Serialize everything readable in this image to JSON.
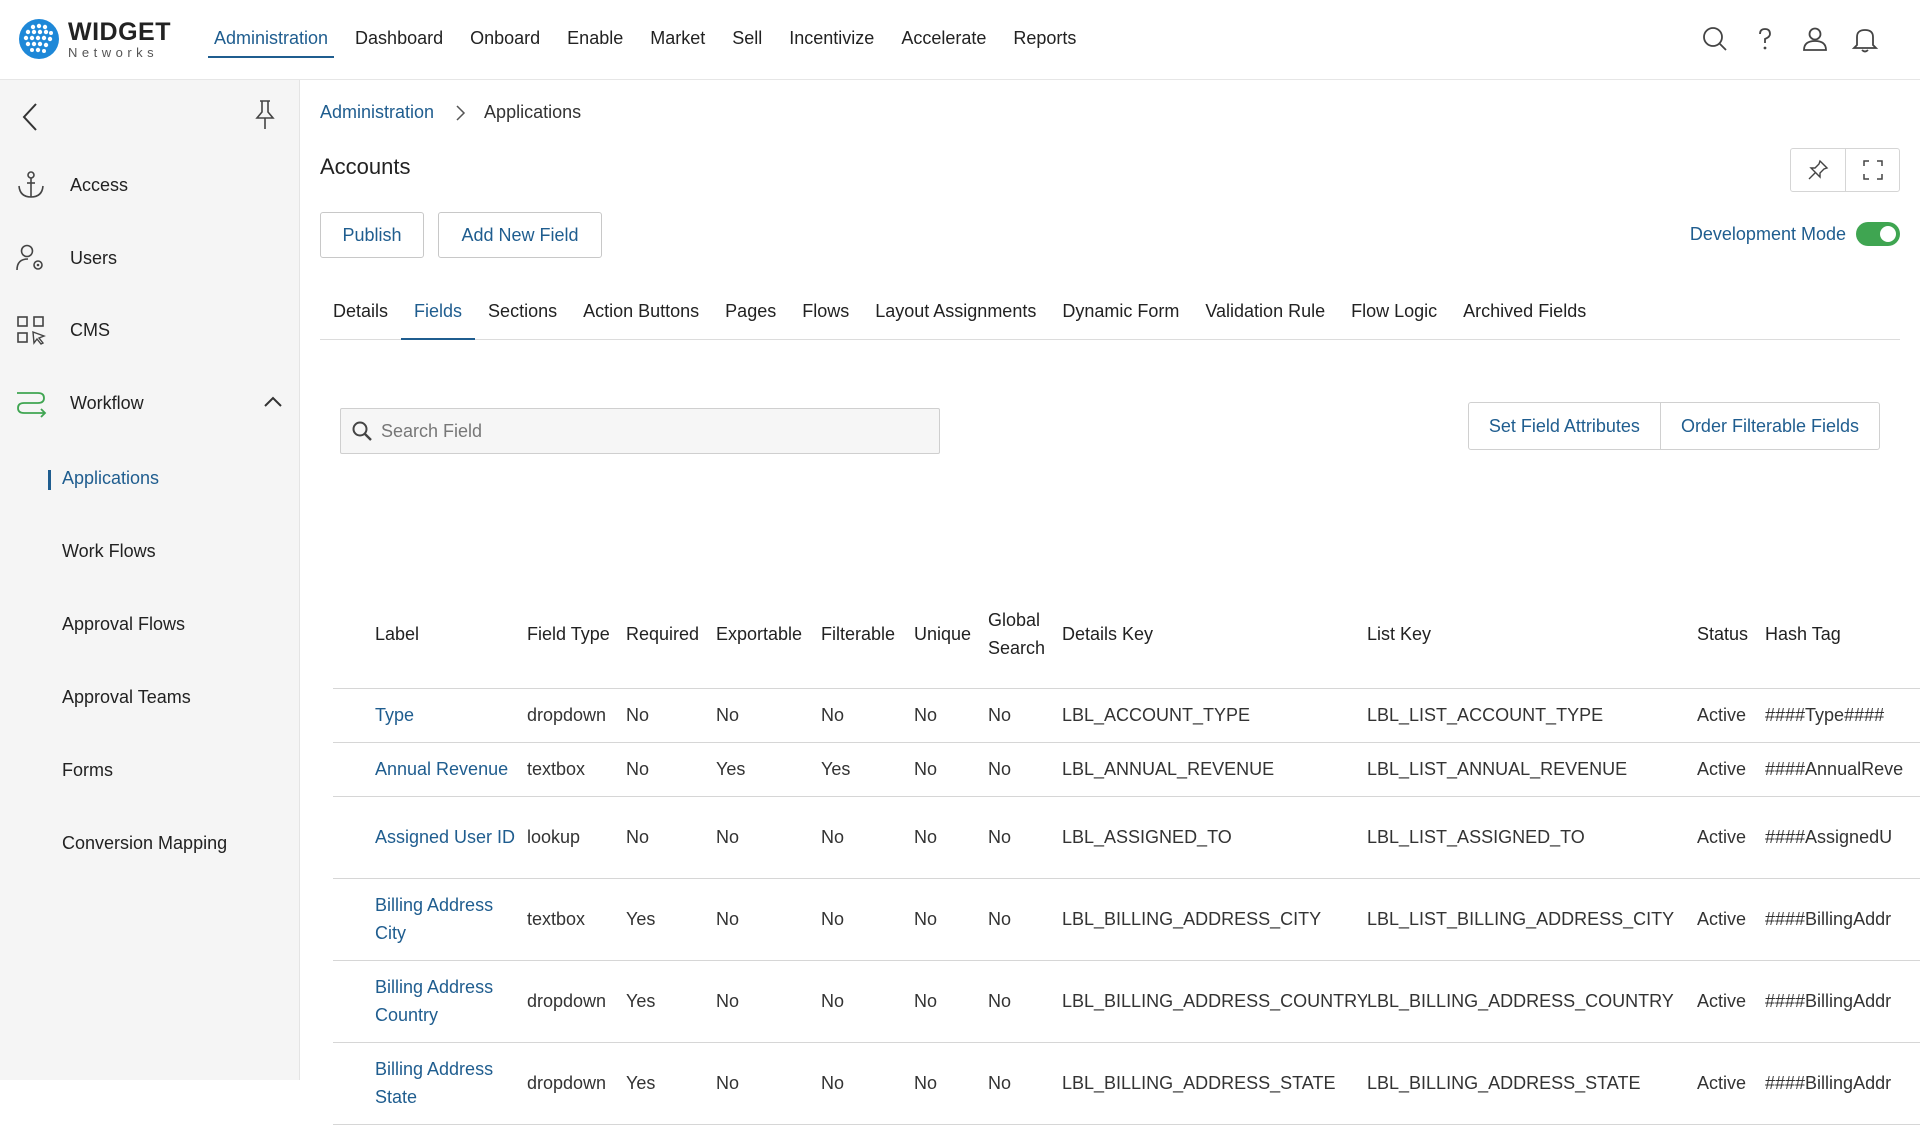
{
  "brand": {
    "title": "WIDGET",
    "subtitle": "Networks"
  },
  "topnav": [
    {
      "label": "Administration",
      "active": true
    },
    {
      "label": "Dashboard"
    },
    {
      "label": "Onboard"
    },
    {
      "label": "Enable"
    },
    {
      "label": "Market"
    },
    {
      "label": "Sell"
    },
    {
      "label": "Incentivize"
    },
    {
      "label": "Accelerate"
    },
    {
      "label": "Reports"
    }
  ],
  "top_icons": [
    "search-icon",
    "help-icon",
    "user-icon",
    "bell-icon"
  ],
  "sidebar": {
    "items": [
      {
        "label": "Access",
        "icon": "anchor-icon"
      },
      {
        "label": "Users",
        "icon": "users-gear-icon"
      },
      {
        "label": "CMS",
        "icon": "cms-grid-icon"
      },
      {
        "label": "Workflow",
        "icon": "workflow-icon",
        "expanded": true
      }
    ],
    "subitems": [
      {
        "label": "Applications",
        "active": true
      },
      {
        "label": "Work Flows"
      },
      {
        "label": "Approval Flows"
      },
      {
        "label": "Approval Teams"
      },
      {
        "label": "Forms"
      },
      {
        "label": "Conversion Mapping"
      }
    ]
  },
  "breadcrumb": {
    "parent": "Administration",
    "current": "Applications"
  },
  "page": {
    "title": "Accounts"
  },
  "buttons": {
    "publish": "Publish",
    "add_field": "Add New Field"
  },
  "dev_mode": {
    "label": "Development Mode",
    "on": true
  },
  "tabs": [
    {
      "label": "Details"
    },
    {
      "label": "Fields",
      "active": true
    },
    {
      "label": "Sections"
    },
    {
      "label": "Action Buttons"
    },
    {
      "label": "Pages"
    },
    {
      "label": "Flows"
    },
    {
      "label": "Layout Assignments"
    },
    {
      "label": "Dynamic Form"
    },
    {
      "label": "Validation Rule"
    },
    {
      "label": "Flow Logic"
    },
    {
      "label": "Archived Fields"
    }
  ],
  "search": {
    "placeholder": "Search Field",
    "value": ""
  },
  "actions": {
    "set_attributes": "Set Field Attributes",
    "order_filterable": "Order Filterable Fields"
  },
  "table": {
    "headers": {
      "label": "Label",
      "field_type": "Field Type",
      "required": "Required",
      "exportable": "Exportable",
      "filterable": "Filterable",
      "unique": "Unique",
      "global_search": "Global Search",
      "details_key": "Details Key",
      "list_key": "List Key",
      "status": "Status",
      "hash_tag": "Hash Tag"
    },
    "rows": [
      {
        "label": "Type",
        "field_type": "dropdown",
        "required": "No",
        "exportable": "No",
        "filterable": "No",
        "unique": "No",
        "global_search": "No",
        "details_key": "LBL_ACCOUNT_TYPE",
        "list_key": "LBL_LIST_ACCOUNT_TYPE",
        "status": "Active",
        "hash_tag": "####Type####"
      },
      {
        "label": "Annual Revenue",
        "field_type": "textbox",
        "required": "No",
        "exportable": "Yes",
        "filterable": "Yes",
        "unique": "No",
        "global_search": "No",
        "details_key": "LBL_ANNUAL_REVENUE",
        "list_key": "LBL_LIST_ANNUAL_REVENUE",
        "status": "Active",
        "hash_tag": "####AnnualReve"
      },
      {
        "label": "Assigned User ID",
        "field_type": "lookup",
        "required": "No",
        "exportable": "No",
        "filterable": "No",
        "unique": "No",
        "global_search": "No",
        "details_key": "LBL_ASSIGNED_TO",
        "list_key": "LBL_LIST_ASSIGNED_TO",
        "status": "Active",
        "hash_tag": "####AssignedU"
      },
      {
        "label": "Billing Address City",
        "field_type": "textbox",
        "required": "Yes",
        "exportable": "No",
        "filterable": "No",
        "unique": "No",
        "global_search": "No",
        "details_key": "LBL_BILLING_ADDRESS_CITY",
        "list_key": "LBL_LIST_BILLING_ADDRESS_CITY",
        "status": "Active",
        "hash_tag": "####BillingAddr"
      },
      {
        "label": "Billing Address Country",
        "field_type": "dropdown",
        "required": "Yes",
        "exportable": "No",
        "filterable": "No",
        "unique": "No",
        "global_search": "No",
        "details_key": "LBL_BILLING_ADDRESS_COUNTRY",
        "list_key": "LBL_BILLING_ADDRESS_COUNTRY",
        "status": "Active",
        "hash_tag": "####BillingAddr"
      },
      {
        "label": "Billing Address State",
        "field_type": "dropdown",
        "required": "Yes",
        "exportable": "No",
        "filterable": "No",
        "unique": "No",
        "global_search": "No",
        "details_key": "LBL_BILLING_ADDRESS_STATE",
        "list_key": "LBL_BILLING_ADDRESS_STATE",
        "status": "Active",
        "hash_tag": "####BillingAddr"
      }
    ]
  },
  "colors": {
    "accent": "#1f5d8f",
    "toggle_on": "#3fa551",
    "logo": "#1e88d8"
  }
}
